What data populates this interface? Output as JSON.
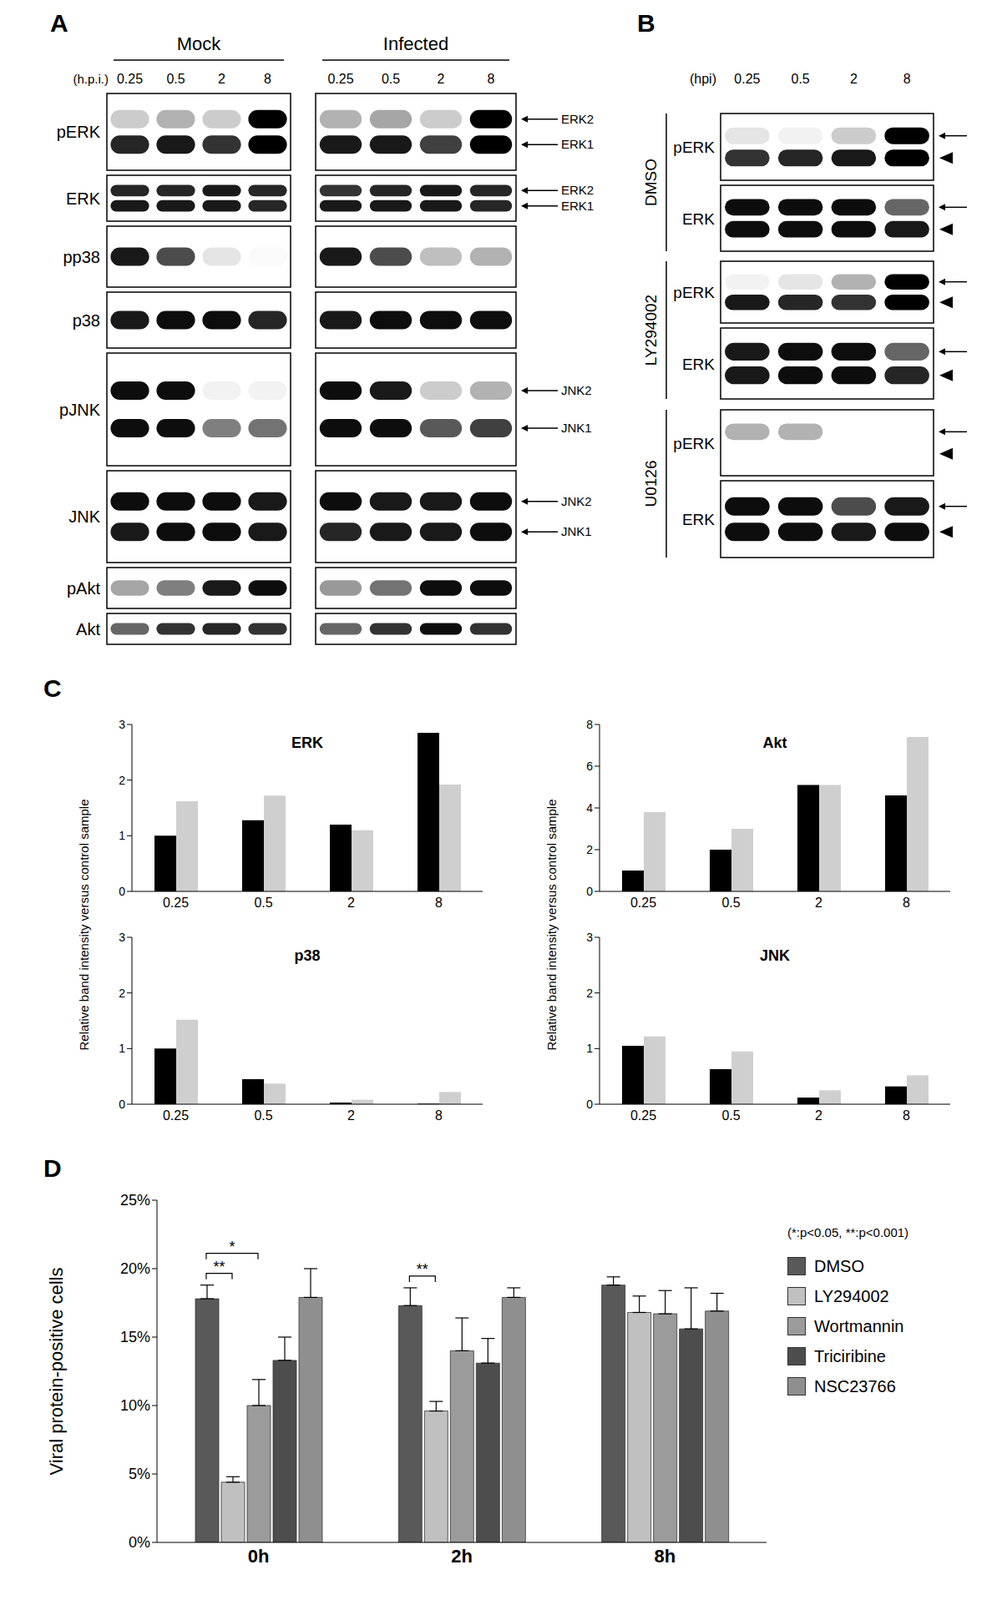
{
  "panel_labels": [
    "A",
    "B",
    "C",
    "D"
  ],
  "blots": [
    {
      "panel": "A",
      "time_label": "(h.p.i.)",
      "times": [
        "0.25",
        "0.5",
        "2",
        "8"
      ],
      "groups": [
        "Mock",
        "Infected"
      ],
      "rows": [
        {
          "label": "pERK",
          "markers": [
            "ERK2",
            "ERK1"
          ],
          "bands": [
            [
              [
                0.2,
                0.3,
                0.2,
                1.0
              ],
              [
                0.85,
                0.9,
                0.8,
                1.0
              ]
            ],
            [
              [
                0.3,
                0.35,
                0.2,
                1.0
              ],
              [
                0.9,
                0.9,
                0.75,
                1.0
              ]
            ]
          ]
        },
        {
          "label": "ERK",
          "markers": [
            "ERK2",
            "ERK1"
          ],
          "bands": [
            [
              [
                0.85,
                0.85,
                0.9,
                0.85
              ],
              [
                0.9,
                0.9,
                0.9,
                0.85
              ]
            ],
            [
              [
                0.8,
                0.85,
                0.9,
                0.85
              ],
              [
                0.9,
                0.9,
                0.9,
                0.85
              ]
            ]
          ]
        },
        {
          "label": "pp38",
          "markers": [],
          "bands": [
            [
              [
                0.9,
                0.7,
                0.1,
                0.02
              ]
            ],
            [
              [
                0.9,
                0.7,
                0.25,
                0.3
              ]
            ]
          ]
        },
        {
          "label": "p38",
          "markers": [],
          "bands": [
            [
              [
                0.9,
                0.95,
                0.95,
                0.85
              ]
            ],
            [
              [
                0.9,
                0.95,
                0.95,
                0.95
              ]
            ]
          ]
        },
        {
          "label": "pJNK",
          "markers": [
            "JNK2",
            "JNK1"
          ],
          "bands": [
            [
              [
                0.95,
                0.95,
                0.05,
                0.05
              ],
              [
                0.95,
                0.95,
                0.5,
                0.55
              ]
            ],
            [
              [
                0.95,
                0.9,
                0.2,
                0.3
              ],
              [
                0.95,
                0.95,
                0.65,
                0.75
              ]
            ]
          ]
        },
        {
          "label": "JNK",
          "markers": [
            "JNK2",
            "JNK1"
          ],
          "bands": [
            [
              [
                0.95,
                0.95,
                0.95,
                0.9
              ],
              [
                0.9,
                0.95,
                0.95,
                0.9
              ]
            ],
            [
              [
                0.95,
                0.9,
                0.9,
                0.95
              ],
              [
                0.85,
                0.9,
                0.9,
                0.95
              ]
            ]
          ]
        },
        {
          "label": "pAkt",
          "markers": [],
          "bands": [
            [
              [
                0.35,
                0.5,
                0.9,
                0.95
              ]
            ],
            [
              [
                0.4,
                0.55,
                0.95,
                0.95
              ]
            ]
          ]
        },
        {
          "label": "Akt",
          "markers": [],
          "bands": [
            [
              [
                0.6,
                0.8,
                0.85,
                0.8
              ]
            ],
            [
              [
                0.6,
                0.8,
                0.95,
                0.8
              ]
            ]
          ]
        }
      ]
    },
    {
      "panel": "B",
      "time_label": "(hpi)",
      "times": [
        "0.25",
        "0.5",
        "2",
        "8"
      ],
      "rows": [
        {
          "group": "DMSO",
          "label": "pERK",
          "bands": [
            [
              0.1,
              0.05,
              0.2,
              1.0
            ],
            [
              0.8,
              0.85,
              0.9,
              1.0
            ]
          ]
        },
        {
          "group": "DMSO",
          "label": "ERK",
          "bands": [
            [
              0.95,
              0.95,
              0.95,
              0.6
            ],
            [
              0.95,
              0.95,
              0.95,
              0.9
            ]
          ]
        },
        {
          "group": "LY294002",
          "label": "pERK",
          "bands": [
            [
              0.05,
              0.1,
              0.3,
              1.0
            ],
            [
              0.9,
              0.85,
              0.8,
              1.0
            ]
          ]
        },
        {
          "group": "LY294002",
          "label": "ERK",
          "bands": [
            [
              0.9,
              0.95,
              0.95,
              0.6
            ],
            [
              0.9,
              0.95,
              0.95,
              0.85
            ]
          ]
        },
        {
          "group": "U0126",
          "label": "pERK",
          "bands": [
            [
              0.3,
              0.3,
              0,
              0
            ],
            [
              0,
              0,
              0,
              0
            ]
          ]
        },
        {
          "group": "U0126",
          "label": "ERK",
          "bands": [
            [
              0.95,
              0.95,
              0.7,
              0.9
            ],
            [
              0.95,
              0.95,
              0.9,
              0.95
            ]
          ]
        }
      ]
    }
  ],
  "chart_data": [
    {
      "type": "bar",
      "title": "ERK",
      "y_label": "Relative band intensity versus control sample",
      "categories": [
        "0.25",
        "0.5",
        "2",
        "8"
      ],
      "series": [
        {
          "color": "#000000",
          "values": [
            1.0,
            1.28,
            1.2,
            2.85
          ]
        },
        {
          "color": "#cfcfcf",
          "values": [
            1.62,
            1.72,
            1.1,
            1.92
          ]
        }
      ],
      "ylim": [
        0,
        3
      ],
      "yticks": [
        0,
        1,
        2,
        3
      ]
    },
    {
      "type": "bar",
      "title": "Akt",
      "y_label": "Relative band intensity versus control sample",
      "categories": [
        "0.25",
        "0.5",
        "2",
        "8"
      ],
      "series": [
        {
          "color": "#000000",
          "values": [
            1.0,
            2.0,
            5.1,
            4.6
          ]
        },
        {
          "color": "#cfcfcf",
          "values": [
            3.8,
            3.0,
            5.1,
            7.4
          ]
        }
      ],
      "ylim": [
        0,
        8
      ],
      "yticks": [
        0,
        2,
        4,
        6,
        8
      ]
    },
    {
      "type": "bar",
      "title": "p38",
      "categories": [
        "0.25",
        "0.5",
        "2",
        "8"
      ],
      "series": [
        {
          "color": "#000000",
          "values": [
            1.0,
            0.45,
            0.03,
            0.01
          ]
        },
        {
          "color": "#cfcfcf",
          "values": [
            1.52,
            0.37,
            0.08,
            0.22
          ]
        }
      ],
      "ylim": [
        0,
        3
      ],
      "yticks": [
        0,
        1,
        2,
        3
      ]
    },
    {
      "type": "bar",
      "title": "JNK",
      "categories": [
        "0.25",
        "0.5",
        "2",
        "8"
      ],
      "series": [
        {
          "color": "#000000",
          "values": [
            1.05,
            0.63,
            0.12,
            0.32
          ]
        },
        {
          "color": "#cfcfcf",
          "values": [
            1.22,
            0.95,
            0.25,
            0.52
          ]
        }
      ],
      "ylim": [
        0,
        3
      ],
      "yticks": [
        0,
        1,
        2,
        3
      ]
    },
    {
      "type": "bar",
      "y_label": "Viral protein-positive cells",
      "categories": [
        "0h",
        "2h",
        "8h"
      ],
      "series": [
        {
          "name": "DMSO",
          "color": "#595959",
          "values": [
            17.8,
            17.3,
            18.8
          ],
          "errors": [
            1.0,
            1.3,
            0.6
          ]
        },
        {
          "name": "LY294002",
          "color": "#c0c0c0",
          "values": [
            4.4,
            9.6,
            16.8
          ],
          "errors": [
            0.4,
            0.7,
            1.2
          ]
        },
        {
          "name": "Wortmannin",
          "color": "#9b9b9b",
          "values": [
            10.0,
            14.0,
            16.7
          ],
          "errors": [
            1.9,
            2.4,
            1.7
          ]
        },
        {
          "name": "Triciribine",
          "color": "#4d4d4d",
          "values": [
            13.3,
            13.1,
            15.6
          ],
          "errors": [
            1.7,
            1.8,
            3.0
          ]
        },
        {
          "name": "NSC23766",
          "color": "#8f8f8f",
          "values": [
            17.9,
            17.9,
            16.9
          ],
          "errors": [
            2.1,
            0.7,
            1.3
          ]
        }
      ],
      "ylim": [
        0,
        25
      ],
      "yticks": [
        {
          "value": 0,
          "label": "0%"
        },
        {
          "value": 5,
          "label": "5%"
        },
        {
          "value": 10,
          "label": "10%"
        },
        {
          "value": 15,
          "label": "15%"
        },
        {
          "value": 20,
          "label": "20%"
        },
        {
          "value": 25,
          "label": "25%"
        }
      ],
      "legend": "right",
      "note": "(*:p<0.05, **:p<0.001)",
      "annotations": [
        {
          "category": "0h",
          "from": "DMSO",
          "to": "LY294002",
          "label": "**"
        },
        {
          "category": "0h",
          "from": "DMSO",
          "to": "Wortmannin",
          "label": "*"
        },
        {
          "category": "2h",
          "from": "DMSO",
          "to": "LY294002",
          "label": "**"
        }
      ]
    }
  ]
}
